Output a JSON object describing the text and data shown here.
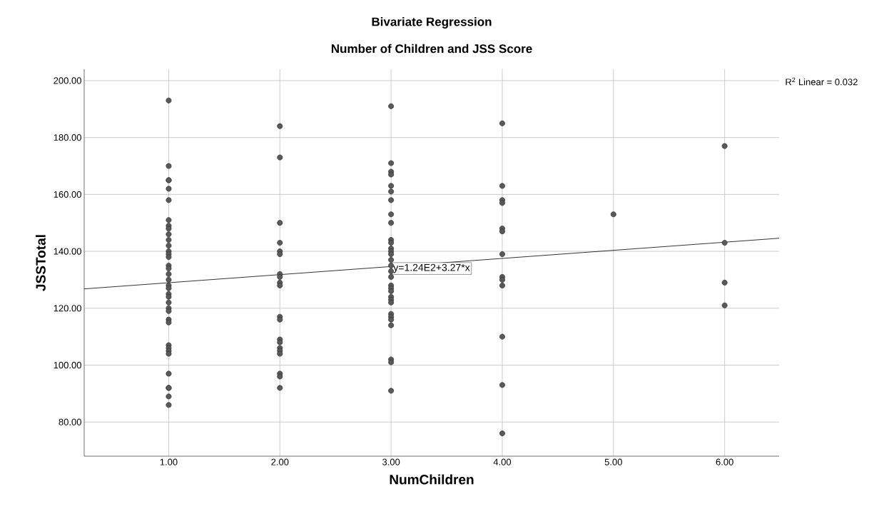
{
  "chart_data": {
    "type": "scatter",
    "title": "Bivariate Regression",
    "subtitle": "Number of Children and JSS Score",
    "xlabel": "NumChildren",
    "ylabel": "JSSTotal",
    "xlim": [
      0.24,
      6.49
    ],
    "ylim": [
      68,
      204
    ],
    "xticks": [
      {
        "value": 1,
        "label": "1.00"
      },
      {
        "value": 2,
        "label": "2.00"
      },
      {
        "value": 3,
        "label": "3.00"
      },
      {
        "value": 4,
        "label": "4.00"
      },
      {
        "value": 5,
        "label": "5.00"
      },
      {
        "value": 6,
        "label": "6.00"
      }
    ],
    "yticks": [
      {
        "value": 80,
        "label": "80.00"
      },
      {
        "value": 100,
        "label": "100.00"
      },
      {
        "value": 120,
        "label": "120.00"
      },
      {
        "value": 140,
        "label": "140.00"
      },
      {
        "value": 160,
        "label": "160.00"
      },
      {
        "value": 180,
        "label": "180.00"
      },
      {
        "value": 200,
        "label": "200.00"
      }
    ],
    "grid": true,
    "marker": "circle",
    "annotations": [
      "y=1.24E2+3.27*x",
      "R$^{2}$ Linear = 0.032"
    ],
    "series": [
      {
        "color": "#5a5a5a",
        "x": [
          1,
          1,
          1,
          1,
          1,
          1,
          1,
          1,
          1,
          1,
          1,
          1,
          1,
          1,
          1,
          1,
          1,
          1,
          1,
          1,
          1,
          1,
          1,
          1,
          1,
          1,
          1,
          1,
          1,
          1,
          1,
          1,
          1,
          1,
          1,
          1,
          1,
          2,
          2,
          2,
          2,
          2,
          2,
          2,
          2,
          2,
          2,
          2,
          2,
          2,
          2,
          2,
          2,
          2,
          2,
          2,
          2,
          3,
          3,
          3,
          3,
          3,
          3,
          3,
          3,
          3,
          3,
          3,
          3,
          3,
          3,
          3,
          3,
          3,
          3,
          3,
          3,
          3,
          3,
          3,
          3,
          3,
          3,
          3,
          3,
          3,
          3,
          3,
          4,
          4,
          4,
          4,
          4,
          4,
          4,
          4,
          4,
          4,
          4,
          4,
          4,
          5,
          6,
          6,
          6,
          6
        ],
        "values": [
          193,
          170,
          165,
          165,
          162,
          158,
          151,
          149,
          148,
          146,
          144,
          142,
          140,
          139,
          138,
          135,
          134,
          132,
          130,
          128,
          127,
          125,
          124,
          122,
          120,
          119,
          116,
          115,
          107,
          106,
          105,
          104,
          97,
          92,
          92,
          89,
          86,
          184,
          173,
          150,
          143,
          140,
          139,
          132,
          131,
          129,
          128,
          117,
          116,
          109,
          108,
          106,
          105,
          104,
          97,
          96,
          92,
          191,
          171,
          168,
          167,
          163,
          161,
          158,
          153,
          150,
          144,
          143,
          141,
          140,
          139,
          137,
          135,
          133,
          131,
          128,
          127,
          126,
          124,
          123,
          122,
          118,
          117,
          116,
          114,
          102,
          101,
          91,
          185,
          163,
          158,
          157,
          148,
          147,
          139,
          131,
          130,
          128,
          110,
          93,
          76,
          153,
          177,
          143,
          129,
          121
        ]
      },
      {
        "type": "line",
        "color": "#000000",
        "marker": "none",
        "x": [
          0.24,
          6.49
        ],
        "values": [
          126.8,
          144.6
        ]
      }
    ]
  }
}
